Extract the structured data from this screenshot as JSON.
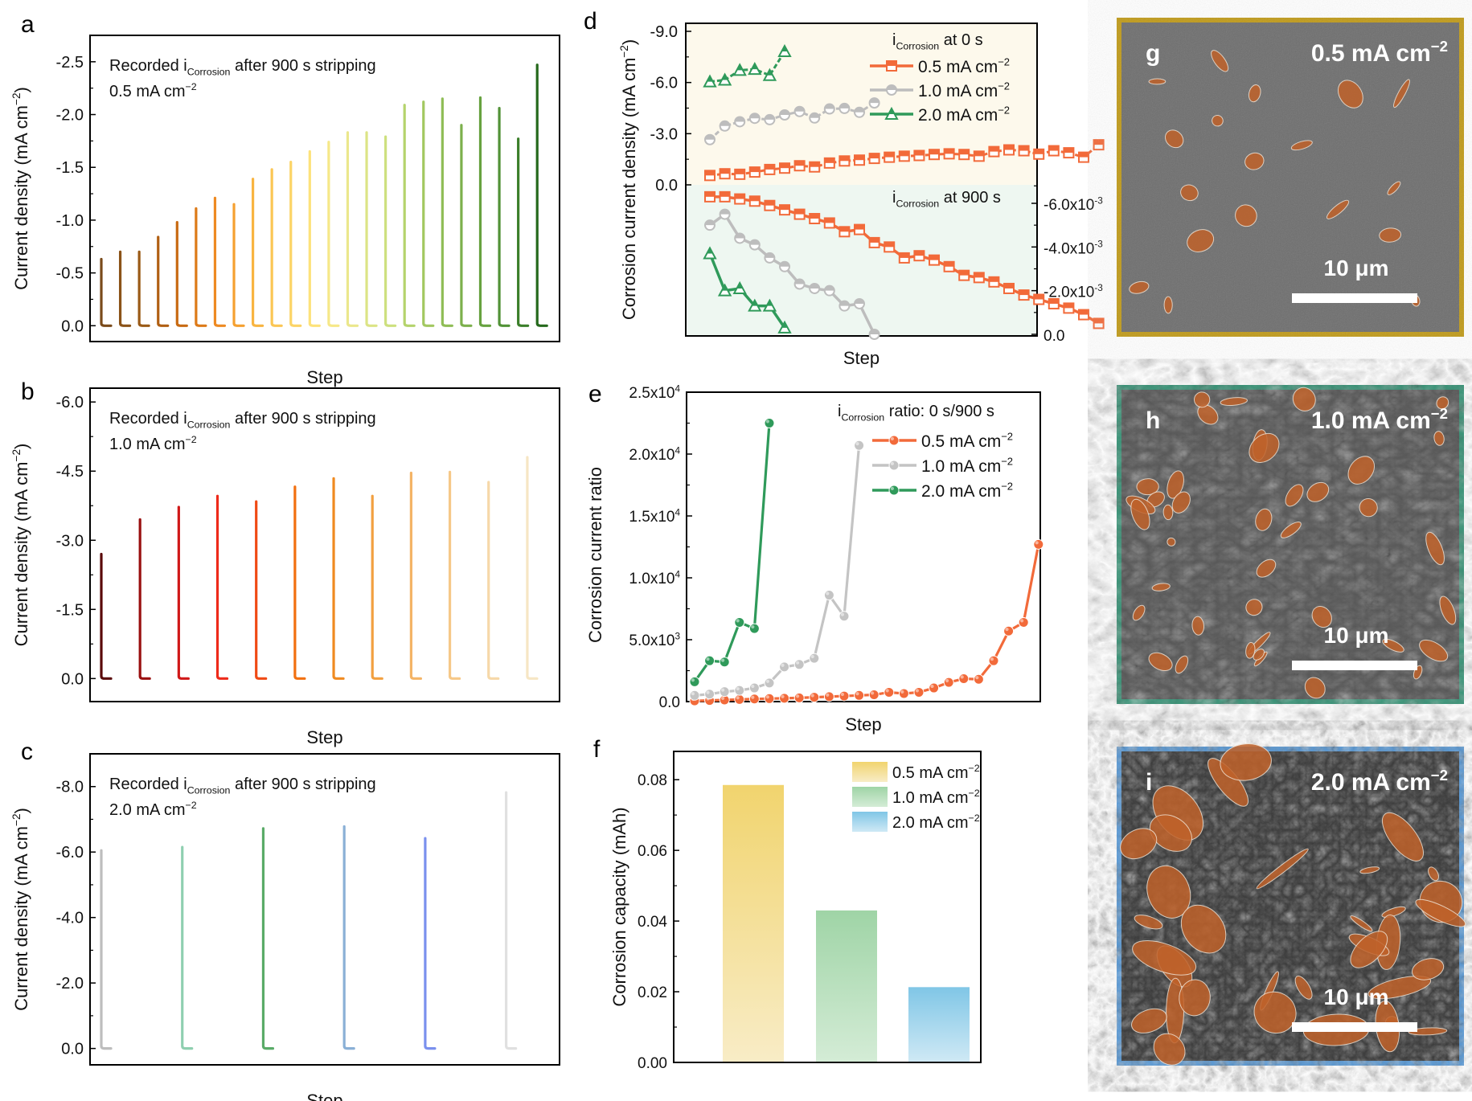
{
  "panel_labels": {
    "a": "a",
    "b": "b",
    "c": "c",
    "d": "d",
    "e": "e",
    "f": "f",
    "g": "g",
    "h": "h",
    "i": "i"
  },
  "chart_data": [
    {
      "id": "a",
      "type": "line",
      "title": "",
      "annotation_line1": {
        "pre": "Recorded i",
        "sub": "Corrosion",
        "post": " after 900 s stripping"
      },
      "annotation_line2": {
        "pre": "0.5 mA cm",
        "sup": "−2"
      },
      "xlabel": "Step",
      "ylabel": {
        "pre": "Current density (mA cm",
        "sup": "−2",
        "post": ")"
      },
      "ylim": [
        0.15,
        -2.75
      ],
      "yticks": [
        0.0,
        -0.5,
        -1.0,
        -1.5,
        -2.0,
        -2.5
      ],
      "ytick_labels": [
        "0.0",
        "-0.5",
        "-1.0",
        "-1.5",
        "-2.0",
        "-2.5"
      ],
      "spike_peaks": [
        -0.63,
        -0.7,
        -0.7,
        -0.84,
        -0.98,
        -1.11,
        -1.21,
        -1.15,
        -1.39,
        -1.48,
        -1.55,
        -1.65,
        -1.74,
        -1.83,
        -1.83,
        -1.79,
        -2.09,
        -2.12,
        -2.15,
        -1.9,
        -2.16,
        -2.06,
        -1.77,
        -2.47
      ],
      "colors": [
        "#7a4a1a",
        "#8b5318",
        "#9a5a16",
        "#b05f12",
        "#c86a12",
        "#dd7a18",
        "#ee8a22",
        "#f5a030",
        "#f8b440",
        "#fbc654",
        "#fcd466",
        "#fde27a",
        "#f6e888",
        "#ebe78c",
        "#dce486",
        "#cde07e",
        "#b4d36c",
        "#a2c860",
        "#8fbd56",
        "#7cb04c",
        "#67a240",
        "#519236",
        "#3b7f2a",
        "#25691c"
      ],
      "grid": false
    },
    {
      "id": "b",
      "type": "line",
      "annotation_line1": {
        "pre": "Recorded i",
        "sub": "Corrosion",
        "post": " after 900 s stripping"
      },
      "annotation_line2": {
        "pre": "1.0 mA cm",
        "sup": "−2"
      },
      "xlabel": "Step",
      "ylabel": {
        "pre": "Current density (mA cm",
        "sup": "−2",
        "post": ")"
      },
      "ylim": [
        0.5,
        -6.3
      ],
      "yticks": [
        0.0,
        -1.5,
        -3.0,
        -4.5,
        -6.0
      ],
      "ytick_labels": [
        "0.0",
        "-1.5",
        "-3.0",
        "-4.5",
        "-6.0"
      ],
      "spike_peaks": [
        -2.7,
        -3.45,
        -3.72,
        -3.96,
        -3.84,
        -4.16,
        -4.34,
        -3.96,
        -4.46,
        -4.48,
        -4.26,
        -4.8
      ],
      "colors": [
        "#5a0a0a",
        "#9a1010",
        "#d01818",
        "#ee2a1a",
        "#f04a14",
        "#f27010",
        "#f08a20",
        "#f2a040",
        "#f4b466",
        "#f6c888",
        "#f6d8a8",
        "#f6e6c4"
      ],
      "grid": false
    },
    {
      "id": "c",
      "type": "line",
      "annotation_line1": {
        "pre": "Recorded i",
        "sub": "Corrosion",
        "post": " after 900 s stripping"
      },
      "annotation_line2": {
        "pre": "2.0 mA cm",
        "sup": "−2"
      },
      "xlabel": "Step",
      "ylabel": {
        "pre": "Current density (mA cm",
        "sup": "−2",
        "post": ")"
      },
      "ylim": [
        0.5,
        -9.0
      ],
      "yticks": [
        0.0,
        -2.0,
        -4.0,
        -6.0,
        -8.0
      ],
      "ytick_labels": [
        "0.0",
        "-2.0",
        "-4.0",
        "-6.0",
        "-8.0"
      ],
      "spike_peaks": [
        -6.05,
        -6.15,
        -6.72,
        -6.78,
        -6.42,
        -7.82
      ],
      "colors": [
        "#bdbdbd",
        "#8fcfb0",
        "#5aab68",
        "#8ab0d6",
        "#7a90ee",
        "#e0e0e0"
      ],
      "grid": false
    },
    {
      "id": "d",
      "type": "line",
      "xlabel": "Step",
      "ylabel": {
        "pre": "Corrosion current density (mA cm",
        "sup": "−2",
        "post": ")"
      },
      "upper": {
        "ylim": [
          0.0,
          -9.0
        ],
        "yticks": [
          0.0,
          -3.0,
          -6.0,
          -9.0
        ],
        "ytick_labels": [
          "0.0",
          "-3.0",
          "-6.0",
          "-9.0"
        ],
        "legend_title": {
          "pre": "i",
          "sub": "Corrosion",
          "post": " at 0 s"
        },
        "series": [
          {
            "name": "0.5 mA cm−2",
            "label_pre": "0.5 mA cm",
            "marker": "square",
            "color": "#f26a3a",
            "values": [
              0.55,
              0.65,
              0.62,
              0.75,
              0.9,
              0.98,
              1.12,
              1.05,
              1.28,
              1.4,
              1.45,
              1.55,
              1.62,
              1.68,
              1.72,
              1.78,
              1.82,
              1.78,
              1.68,
              1.95,
              2.05,
              2.0,
              1.8,
              2.0,
              1.88,
              1.62,
              2.35
            ]
          },
          {
            "name": "1.0 mA cm−2",
            "label_pre": "1.0 mA cm",
            "marker": "circle",
            "color": "#bdbdbd",
            "values": [
              2.65,
              3.45,
              3.7,
              3.9,
              3.82,
              4.1,
              4.3,
              3.92,
              4.45,
              4.48,
              4.25,
              4.8
            ]
          },
          {
            "name": "2.0 mA cm−2",
            "label_pre": "2.0 mA cm",
            "marker": "triangle",
            "color": "#2f9a5a",
            "values": [
              6.05,
              6.15,
              6.72,
              6.78,
              6.42,
              7.82
            ]
          }
        ]
      },
      "lower": {
        "ylim": [
          0.0,
          -0.0068
        ],
        "yticks": [
          0.0,
          -0.002,
          -0.004,
          -0.006
        ],
        "ytick_labels": [
          "0.0",
          "-2.0x10",
          "-4.0x10",
          "-6.0x10"
        ],
        "ytick_exp": [
          "",
          "-3",
          "-3",
          "-3"
        ],
        "legend_title": {
          "pre": "i",
          "sub": "Corrosion",
          "post": " at 900 s"
        },
        "series": [
          {
            "name": "0.5 mA cm−2",
            "color": "#f26a3a",
            "marker": "square",
            "values": [
              0.0063,
              0.0063,
              0.0062,
              0.0061,
              0.0059,
              0.0057,
              0.0055,
              0.0053,
              0.0051,
              0.0047,
              0.0048,
              0.0042,
              0.004,
              0.0035,
              0.0036,
              0.0034,
              0.0031,
              0.0027,
              0.0026,
              0.0024,
              0.0021,
              0.0018,
              0.0016,
              0.0014,
              0.0012,
              0.0009,
              0.0005
            ]
          },
          {
            "name": "1.0 mA cm−2",
            "color": "#bdbdbd",
            "marker": "circle",
            "values": [
              0.005,
              0.0055,
              0.0044,
              0.0041,
              0.0035,
              0.0031,
              0.0023,
              0.0021,
              0.002,
              0.0013,
              0.0014,
              0.0
            ]
          },
          {
            "name": "2.0 mA cm−2",
            "color": "#2f9a5a",
            "marker": "triangle",
            "values": [
              0.0037,
              0.002,
              0.0021,
              0.0013,
              0.0013,
              0.0003
            ]
          }
        ]
      },
      "upper_bg": "#fdf9ec",
      "lower_bg": "#eef7f1"
    },
    {
      "id": "e",
      "type": "line",
      "xlabel": "Step",
      "ylabel": "Corrosion current ratio",
      "ylim": [
        0,
        25000
      ],
      "yticks": [
        0,
        5000,
        10000,
        15000,
        20000,
        25000
      ],
      "ytick_labels": [
        "0.0",
        "5.0x10",
        "1.0x10",
        "1.5x10",
        "2.0x10",
        "2.5x10"
      ],
      "ytick_exp": [
        "",
        "3",
        "4",
        "4",
        "4",
        "4"
      ],
      "legend_title": {
        "pre": "i",
        "sub": "Corrosion",
        "post": " ratio: 0 s/900 s"
      },
      "series": [
        {
          "name": "0.5 mA cm−2",
          "label_pre": "0.5 mA cm",
          "color": "#f26a3a",
          "values": [
            60,
            90,
            130,
            170,
            210,
            240,
            270,
            300,
            350,
            400,
            450,
            500,
            550,
            750,
            650,
            750,
            1100,
            1550,
            1850,
            1800,
            3300,
            5700,
            6400,
            12700
          ]
        },
        {
          "name": "1.0 mA cm−2",
          "label_pre": "1.0 mA cm",
          "color": "#c4c4c4",
          "values": [
            500,
            600,
            800,
            900,
            1100,
            1500,
            2800,
            3000,
            3500,
            8600,
            6900,
            20700
          ]
        },
        {
          "name": "2.0 mA cm−2",
          "label_pre": "2.0 mA cm",
          "color": "#2f9a5a",
          "values": [
            1600,
            3300,
            3200,
            6400,
            5900,
            22500
          ]
        }
      ],
      "grid": false
    },
    {
      "id": "f",
      "type": "bar",
      "xlabel": "",
      "ylabel": "Corrosion capacity (mAh)",
      "ylim": [
        0,
        0.088
      ],
      "yticks": [
        0.0,
        0.02,
        0.04,
        0.06,
        0.08
      ],
      "ytick_labels": [
        "0.00",
        "0.02",
        "0.04",
        "0.06",
        "0.08"
      ],
      "categories": [
        "0.5 mA cm−2",
        "1.0 mA cm−2",
        "2.0 mA cm−2"
      ],
      "legend": [
        {
          "label_pre": "0.5 mA cm",
          "top": "#f1d46e",
          "bottom": "#f8ecc6"
        },
        {
          "label_pre": "1.0 mA cm",
          "top": "#9fd4a6",
          "bottom": "#d4ecd6"
        },
        {
          "label_pre": "2.0 mA cm",
          "top": "#80c6e6",
          "bottom": "#cfe9f5"
        }
      ],
      "values": [
        0.0785,
        0.043,
        0.0213
      ],
      "legend_position": "top-right"
    }
  ],
  "sem_images": [
    {
      "id": "g",
      "label": "g",
      "title_pre": "0.5 mA cm",
      "title_sup": "−2",
      "scale_bar": "10 μm",
      "border": "#c09a18",
      "bg": "#6e6e6e",
      "texture": "smooth"
    },
    {
      "id": "h",
      "label": "h",
      "title_pre": "1.0 mA cm",
      "title_sup": "−2",
      "scale_bar": "10 μm",
      "border": "#3a9478",
      "bg": "#5a5a5a",
      "texture": "wrinkled"
    },
    {
      "id": "i",
      "label": "i",
      "title_pre": "2.0 mA cm",
      "title_sup": "−2",
      "scale_bar": "10 μm",
      "border": "#5a9ad6",
      "bg": "#3c3c3c",
      "texture": "rough"
    }
  ],
  "common": {
    "sup_m2": "−2",
    "exp_3": "-3"
  }
}
